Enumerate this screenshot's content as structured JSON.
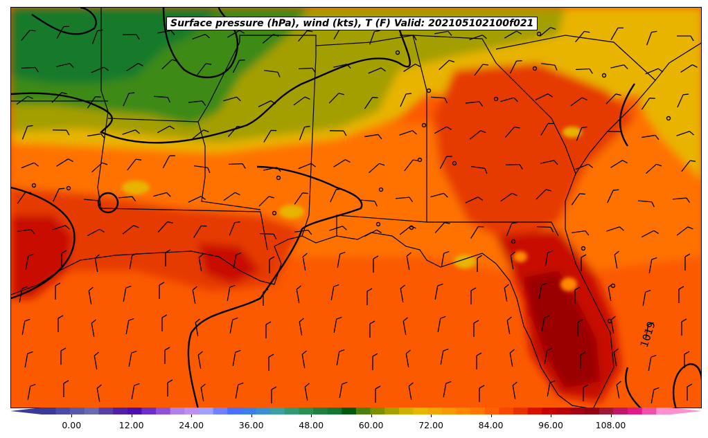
{
  "title": "Surface pressure (hPa), wind (kts), T (F) Valid: 202105102100f021",
  "isobar_label": "1019",
  "colorbar": {
    "tick_labels": [
      "0.00",
      "12.00",
      "24.00",
      "36.00",
      "48.00",
      "60.00",
      "72.00",
      "84.00",
      "96.00",
      "108.00"
    ],
    "tick_values": [
      0,
      12,
      24,
      36,
      48,
      60,
      72,
      84,
      96,
      108
    ],
    "range": [
      -6,
      120
    ],
    "colors": [
      "#3a3a9c",
      "#4b4ba8",
      "#5a5aac",
      "#6a6ab0",
      "#5a3ea8",
      "#5020a8",
      "#4a10b0",
      "#6a30c8",
      "#9050d8",
      "#b080e8",
      "#c090f0",
      "#a0a0ff",
      "#7080ff",
      "#4a70ff",
      "#3a80e8",
      "#3a90d0",
      "#3aa0a0",
      "#309a70",
      "#289050",
      "#208040",
      "#107830",
      "#005a10",
      "#4a8010",
      "#7a9000",
      "#a4a000",
      "#d0b000",
      "#e8b800",
      "#f0a800",
      "#f89800",
      "#ff8800",
      "#ff7600",
      "#ff6000",
      "#f84800",
      "#e83000",
      "#d81000",
      "#c80000",
      "#b80008",
      "#a00010",
      "#900010",
      "#a01838",
      "#c01868",
      "#e01a88",
      "#f050a8",
      "#ff90d0"
    ]
  },
  "temperature_colors": {
    "cool_dark": "#157a2c",
    "cool_green": "#3c8a14",
    "olive": "#a49f00",
    "yellow": "#e8b400",
    "orange_light": "#ff8a00",
    "orange": "#ff7200",
    "orange_dark": "#ff5a00",
    "red": "#e63a00",
    "red_dark": "#c80800",
    "maroon": "#9a0005",
    "gulf": "#fb5a00"
  }
}
